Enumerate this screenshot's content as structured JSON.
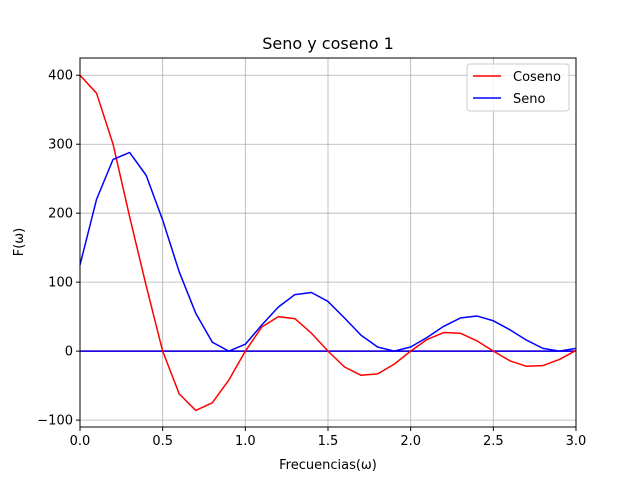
{
  "chart_data": {
    "type": "line",
    "title": "Seno y coseno 1",
    "xlabel": "Frecuencias(ω)",
    "ylabel": "F(ω)",
    "xlim": [
      0.0,
      3.0
    ],
    "ylim": [
      -110,
      425
    ],
    "xticks": [
      0.0,
      0.5,
      1.0,
      1.5,
      2.0,
      2.5,
      3.0
    ],
    "xtick_labels": [
      "0.0",
      "0.5",
      "1.0",
      "1.5",
      "2.0",
      "2.5",
      "3.0"
    ],
    "yticks": [
      -100,
      0,
      100,
      200,
      300,
      400
    ],
    "ytick_labels": [
      "−100",
      "0",
      "100",
      "200",
      "300",
      "400"
    ],
    "grid": true,
    "legend_position": "top-right",
    "x": [
      0.0,
      0.1,
      0.2,
      0.3,
      0.4,
      0.5,
      0.6,
      0.7,
      0.8,
      0.9,
      1.0,
      1.1,
      1.2,
      1.3,
      1.4,
      1.5,
      1.6,
      1.7,
      1.8,
      1.9,
      2.0,
      2.1,
      2.2,
      2.3,
      2.4,
      2.5,
      2.6,
      2.7,
      2.8,
      2.9,
      3.0
    ],
    "series": [
      {
        "name": "Coseno",
        "color": "#ff0000",
        "values": [
          400,
          374,
          300,
          195,
          95,
          0,
          -62,
          -86,
          -75,
          -42,
          0,
          35,
          50,
          47,
          26,
          0,
          -23,
          -35,
          -33,
          -19,
          0,
          17,
          27,
          26,
          15,
          0,
          -14,
          -22,
          -21,
          -12,
          1
        ]
      },
      {
        "name": "Seno",
        "color": "#0000ff",
        "values": [
          125,
          220,
          278,
          288,
          255,
          190,
          115,
          55,
          13,
          0,
          10,
          38,
          64,
          82,
          85,
          72,
          48,
          23,
          6,
          0,
          6,
          20,
          36,
          48,
          51,
          44,
          31,
          16,
          4,
          0,
          4
        ]
      }
    ],
    "zero_lines": [
      {
        "color": "#ff0000",
        "y": 0
      },
      {
        "color": "#0000ff",
        "y": 0
      }
    ]
  }
}
